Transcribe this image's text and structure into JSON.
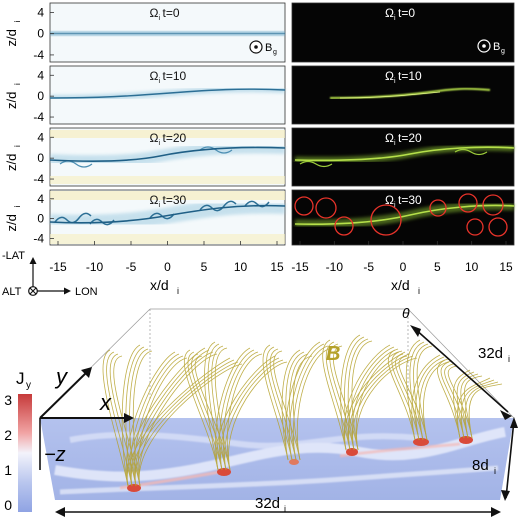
{
  "top_panels": {
    "y_label": "z/d",
    "y_label_sub": "i",
    "y_ticks": [
      "4",
      "0",
      "-4"
    ],
    "time_labels": [
      "Ω",
      "Ω",
      "Ω",
      "Ω"
    ],
    "time_subs": [
      "i",
      "i",
      "i",
      "i"
    ],
    "time_values": [
      "t=0",
      "t=10",
      "t=20",
      "t=30"
    ],
    "bg_label": "B",
    "bg_sub": "g",
    "x_ticks": [
      "-15",
      "-10",
      "-5",
      "0",
      "5",
      "10",
      "15"
    ],
    "x_label": "x/d",
    "x_label_sub": "i"
  },
  "orientation": {
    "up": "-LAT",
    "left": "ALT",
    "right": "LON"
  },
  "bottom_panel": {
    "colorbar_title": "J",
    "colorbar_title_sub": "y",
    "colorbar_ticks": [
      "3",
      "2",
      "1",
      "0"
    ],
    "axis_y": "y",
    "axis_x": "x",
    "axis_z": "−z",
    "field_label": "B",
    "theta_label": "θ",
    "dim_top": "32d",
    "dim_top_sub": "i",
    "dim_side": "8d",
    "dim_side_sub": "i",
    "dim_bottom": "32d",
    "dim_bottom_sub": "i"
  },
  "colors": {
    "left_panel_bg": "#f4f9fb",
    "current_sheet": "#2c6f95",
    "right_panel_bg": "#050505",
    "sheet_green": "#b6e04a",
    "circle_red": "#e8332a",
    "field_lines": "#b5a12a",
    "slab": "#a8b9e8"
  }
}
